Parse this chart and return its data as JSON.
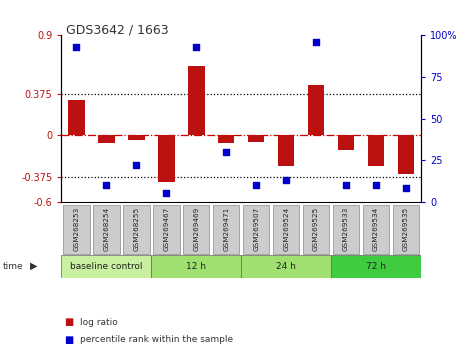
{
  "title": "GDS3642 / 1663",
  "samples": [
    "GSM268253",
    "GSM268254",
    "GSM268255",
    "GSM269467",
    "GSM269469",
    "GSM269471",
    "GSM269507",
    "GSM269524",
    "GSM269525",
    "GSM269533",
    "GSM269534",
    "GSM269535"
  ],
  "log_ratio": [
    0.32,
    -0.07,
    -0.04,
    -0.42,
    0.62,
    -0.07,
    -0.06,
    -0.28,
    0.45,
    -0.13,
    -0.28,
    -0.35
  ],
  "percentile_rank": [
    93,
    10,
    22,
    5,
    93,
    30,
    10,
    13,
    96,
    10,
    10,
    8
  ],
  "groups": [
    {
      "label": "baseline control",
      "start": 0,
      "end": 3,
      "color": "#c8f0a0"
    },
    {
      "label": "12 h",
      "start": 3,
      "end": 6,
      "color": "#a0e070"
    },
    {
      "label": "24 h",
      "start": 6,
      "end": 9,
      "color": "#a0e070"
    },
    {
      "label": "72 h",
      "start": 9,
      "end": 12,
      "color": "#40cc40"
    }
  ],
  "ylim": [
    -0.6,
    0.9
  ],
  "y_ticks_left": [
    -0.6,
    -0.375,
    0,
    0.375,
    0.9
  ],
  "y_ticks_right": [
    0,
    25,
    50,
    75,
    100
  ],
  "hlines": [
    0.375,
    -0.375
  ],
  "bar_color": "#bb1111",
  "dot_color": "#0000cc",
  "background_color": "#ffffff",
  "zero_line_color": "#cc0000",
  "sample_box_color": "#cccccc",
  "sample_box_edge": "#888888"
}
